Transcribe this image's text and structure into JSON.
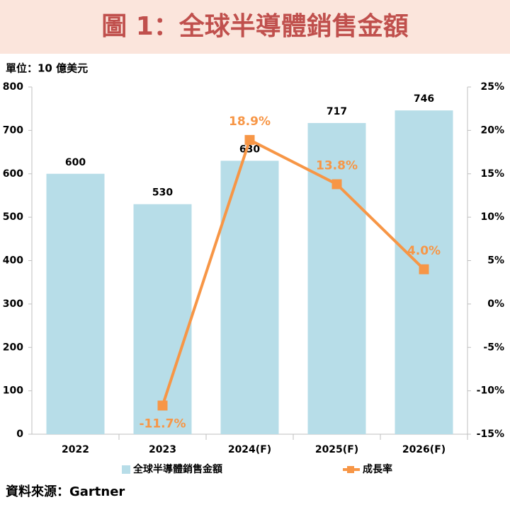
{
  "chart_data": {
    "type": "combo",
    "title": "圖 1：全球半導體銷售金額",
    "unit_label": "單位：10 億美元",
    "source": "資料來源：Gartner",
    "categories": [
      "2022",
      "2023",
      "2024(F)",
      "2025(F)",
      "2026(F)"
    ],
    "series": [
      {
        "name": "全球半導體銷售金額",
        "type": "bar",
        "axis": "y",
        "color": "#b7dde8",
        "values": [
          600,
          530,
          630,
          717,
          746
        ]
      },
      {
        "name": "成長率",
        "type": "line",
        "axis": "y2",
        "color": "#f79646",
        "values": [
          null,
          -11.7,
          18.9,
          13.8,
          4.0
        ],
        "value_labels": [
          null,
          "-11.7%",
          "18.9%",
          "13.8%",
          "4.0%"
        ]
      }
    ],
    "ylim": [
      0,
      800
    ],
    "yticks": [
      0,
      100,
      200,
      300,
      400,
      500,
      600,
      700,
      800
    ],
    "y2lim": [
      -15,
      25
    ],
    "y2ticks": [
      {
        "value": -15,
        "label": "-15%"
      },
      {
        "value": -10,
        "label": "-10%"
      },
      {
        "value": -5,
        "label": "-5%"
      },
      {
        "value": 0,
        "label": "0%"
      },
      {
        "value": 5,
        "label": "5%"
      },
      {
        "value": 10,
        "label": "10%"
      },
      {
        "value": 15,
        "label": "15%"
      },
      {
        "value": 20,
        "label": "20%"
      },
      {
        "value": 25,
        "label": "25%"
      }
    ],
    "grid": false
  }
}
